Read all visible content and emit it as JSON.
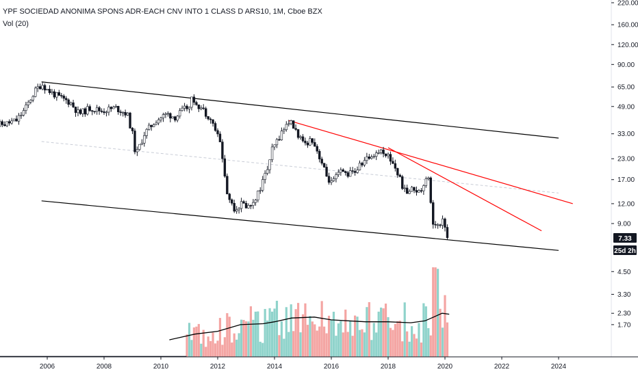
{
  "header": {
    "symbol_line": "YPF SOCIEDAD ANONIMA SPONS ADR-EACH CNV INTO 1 CLASS D ARS10, 1M, Cboe BZX",
    "indicator_line": "Vol (20)"
  },
  "price_badge": {
    "value": "7.33",
    "countdown": "25d 2h"
  },
  "colors": {
    "up": "#26a69a",
    "down": "#ef5350",
    "vol_up": "#8fd3cb",
    "vol_down": "#f4a5a3",
    "channel": "#000000",
    "trend": "#ff0000",
    "ma": "#000000",
    "midline": "#c8ccd6"
  },
  "chart_data": [
    {
      "type": "candlestick",
      "title": "YPF SOCIEDAD ANONIMA SPONS ADR-EACH CNV INTO 1 CLASS D ARS10, 1M, Cboe BZX",
      "y_scale": "log",
      "ylim": [
        5.5,
        230
      ],
      "xlim": [
        2004.0,
        2026.5
      ],
      "y_ticks": [
        "220.00",
        "160.00",
        "120.00",
        "90.00",
        "65.00",
        "49.00",
        "33.00",
        "23.00",
        "17.00",
        "12.00",
        "9.00"
      ],
      "x_ticks": [
        "2006",
        "2008",
        "2010",
        "2012",
        "2014",
        "2016",
        "2018",
        "2020",
        "2022",
        "2024"
      ],
      "last_price": 7.33,
      "price_path": [
        [
          2004.0,
          37
        ],
        [
          2004.6,
          38
        ],
        [
          2005.0,
          40
        ],
        [
          2005.3,
          47
        ],
        [
          2005.5,
          55
        ],
        [
          2005.7,
          63
        ],
        [
          2005.9,
          68
        ],
        [
          2006.1,
          62
        ],
        [
          2006.5,
          56
        ],
        [
          2006.9,
          52
        ],
        [
          2007.2,
          44
        ],
        [
          2007.6,
          48
        ],
        [
          2008.0,
          46
        ],
        [
          2008.5,
          48
        ],
        [
          2008.9,
          44
        ],
        [
          2009.1,
          32
        ],
        [
          2009.2,
          24
        ],
        [
          2009.5,
          33
        ],
        [
          2009.9,
          40
        ],
        [
          2010.3,
          44
        ],
        [
          2010.6,
          42
        ],
        [
          2010.9,
          47
        ],
        [
          2011.0,
          48
        ],
        [
          2011.2,
          55
        ],
        [
          2011.5,
          48
        ],
        [
          2011.8,
          42
        ],
        [
          2012.0,
          35
        ],
        [
          2012.2,
          28
        ],
        [
          2012.4,
          14
        ],
        [
          2012.7,
          11
        ],
        [
          2012.9,
          12
        ],
        [
          2013.2,
          11.5
        ],
        [
          2013.5,
          14
        ],
        [
          2013.8,
          19
        ],
        [
          2014.0,
          26
        ],
        [
          2014.3,
          33
        ],
        [
          2014.6,
          40
        ],
        [
          2014.9,
          33
        ],
        [
          2015.1,
          28
        ],
        [
          2015.4,
          31
        ],
        [
          2015.7,
          23
        ],
        [
          2015.9,
          18
        ],
        [
          2016.1,
          16
        ],
        [
          2016.4,
          19
        ],
        [
          2016.7,
          18.5
        ],
        [
          2016.9,
          19
        ],
        [
          2017.2,
          22
        ],
        [
          2017.5,
          24
        ],
        [
          2017.8,
          26
        ],
        [
          2018.0,
          25
        ],
        [
          2018.3,
          21
        ],
        [
          2018.5,
          17
        ],
        [
          2018.7,
          14
        ],
        [
          2019.0,
          15
        ],
        [
          2019.2,
          14
        ],
        [
          2019.4,
          17.5
        ],
        [
          2019.5,
          18
        ],
        [
          2019.6,
          11
        ],
        [
          2019.7,
          8.5
        ],
        [
          2019.9,
          9
        ],
        [
          2020.0,
          10
        ],
        [
          2020.1,
          8.3
        ],
        [
          2020.15,
          7.33
        ]
      ],
      "volume_ma_path": [
        [
          2010.3,
          0.9
        ],
        [
          2011.2,
          1.2
        ],
        [
          2012.0,
          1.35
        ],
        [
          2012.8,
          1.7
        ],
        [
          2013.6,
          1.75
        ],
        [
          2014.0,
          1.85
        ],
        [
          2014.6,
          2.05
        ],
        [
          2015.4,
          2.1
        ],
        [
          2016.0,
          1.95
        ],
        [
          2016.6,
          1.9
        ],
        [
          2017.2,
          1.85
        ],
        [
          2018.0,
          1.85
        ],
        [
          2018.8,
          1.8
        ],
        [
          2019.3,
          1.9
        ],
        [
          2019.6,
          2.1
        ],
        [
          2019.9,
          2.3
        ],
        [
          2020.15,
          2.25
        ]
      ],
      "volume_ticks": [
        "4.50",
        "3.30",
        "2.30",
        "1.70"
      ],
      "drawings": {
        "channel_upper": [
          [
            2005.8,
            70
          ],
          [
            2024.0,
            31
          ]
        ],
        "channel_lower": [
          [
            2005.8,
            12.5
          ],
          [
            2024.0,
            6.1
          ]
        ],
        "channel_mid": [
          [
            2005.8,
            29.5
          ],
          [
            2024.0,
            14.0
          ]
        ],
        "trend_1": [
          [
            2014.5,
            40
          ],
          [
            2024.5,
            12.0
          ]
        ],
        "trend_2": [
          [
            2018.0,
            27
          ],
          [
            2023.4,
            8.1
          ]
        ]
      }
    }
  ]
}
